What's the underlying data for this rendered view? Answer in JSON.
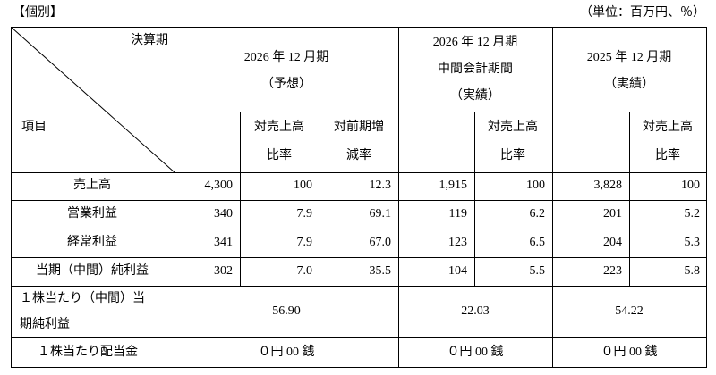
{
  "header": {
    "left": "【個別】",
    "right": "（単位：百万円、％）"
  },
  "table": {
    "corner": {
      "top": "決算期",
      "bottom": "項目"
    },
    "periods": [
      {
        "lines": [
          "2026 年 12 月期",
          "（予想）"
        ]
      },
      {
        "lines": [
          "2026 年 12 月期",
          "中間会計期間",
          "（実績）"
        ]
      },
      {
        "lines": [
          "2025 年 12 月期",
          "（実績）"
        ]
      }
    ],
    "subheaders": [
      {
        "lines": [
          "対売上高",
          "比率"
        ]
      },
      {
        "lines": [
          "対前期増",
          "減率"
        ]
      },
      {
        "lines": [
          "対売上高",
          "比率"
        ]
      },
      {
        "lines": [
          "対売上高",
          "比率"
        ]
      }
    ],
    "rows": [
      {
        "label": "売上高",
        "values": [
          "4,300",
          "100",
          "12.3",
          "1,915",
          "100",
          "3,828",
          "100"
        ]
      },
      {
        "label": "営業利益",
        "values": [
          "340",
          "7.9",
          "69.1",
          "119",
          "6.2",
          "201",
          "5.2"
        ]
      },
      {
        "label": "経常利益",
        "values": [
          "341",
          "7.9",
          "67.0",
          "123",
          "6.5",
          "204",
          "5.3"
        ]
      },
      {
        "label": "当期（中間）純利益",
        "values": [
          "302",
          "7.0",
          "35.5",
          "104",
          "5.5",
          "223",
          "5.8"
        ]
      }
    ],
    "per_share": [
      {
        "label_lines": [
          "１株当たり（中間）当",
          "期純利益"
        ],
        "values": [
          "56.90",
          "22.03",
          "54.22"
        ]
      },
      {
        "label_lines": [
          "１株当たり配当金"
        ],
        "values": [
          "０円 00 銭",
          "０円 00 銭",
          "０円 00 銭"
        ]
      }
    ]
  }
}
